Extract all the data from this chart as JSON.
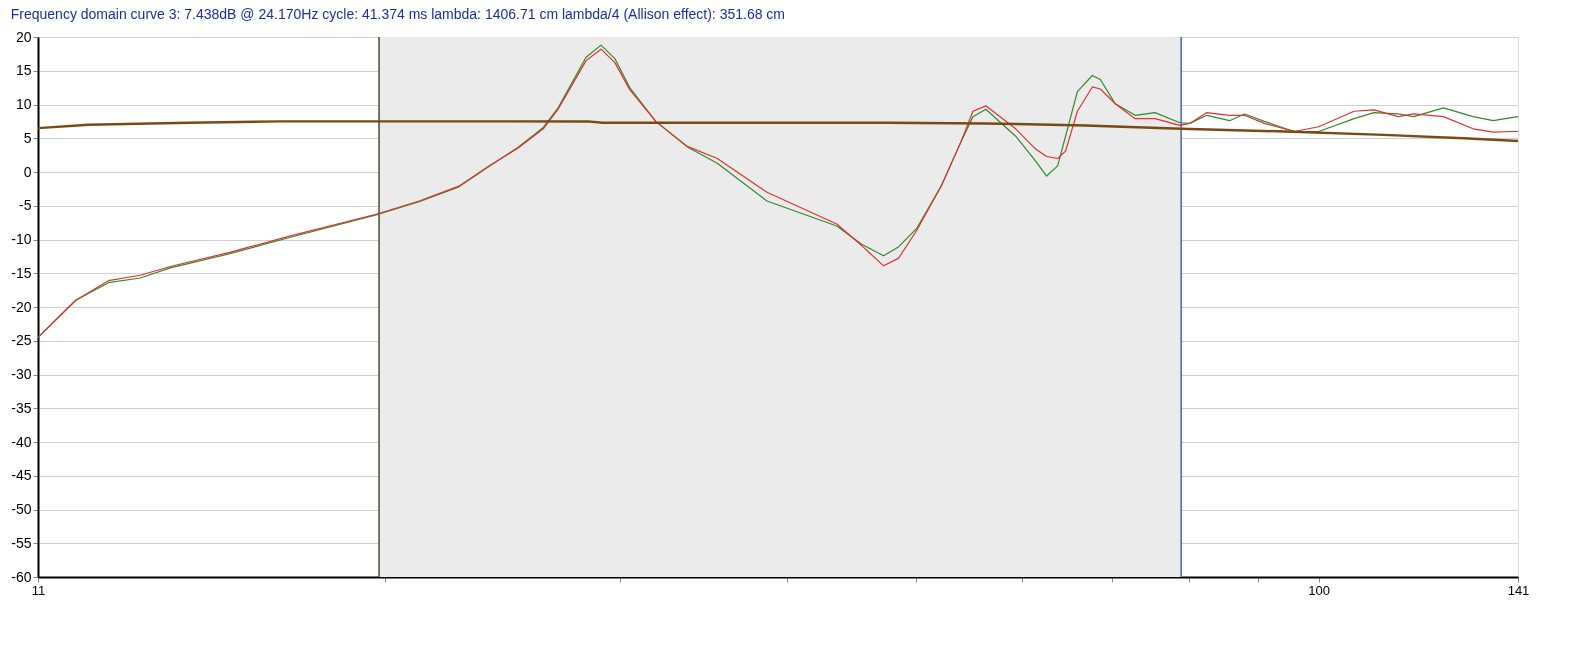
{
  "chart_data": {
    "type": "line",
    "title": "Frequency domain curve 3:  7.438dB @ 24.170Hz    cycle: 41.374 ms   lambda: 1406.71 cm  lambda/4 (Allison effect): 351.68 cm",
    "log": "x",
    "grid": "y",
    "marker": "none",
    "line_style": "solid",
    "xlim": [
      11,
      141
    ],
    "xticks": [
      11,
      {
        "value": 20,
        "label": null
      },
      {
        "value": 30,
        "label": null
      },
      {
        "value": 40,
        "label": null
      },
      {
        "value": 50,
        "label": null
      },
      {
        "value": 60,
        "label": null
      },
      {
        "value": 70,
        "label": null
      },
      {
        "value": 80,
        "label": null
      },
      {
        "value": 90,
        "label": null
      },
      100,
      141
    ],
    "ylim": [
      -60,
      20
    ],
    "yticks": [
      -60,
      -55,
      -50,
      -45,
      -40,
      -35,
      -30,
      -25,
      -20,
      -15,
      -10,
      -5,
      0,
      5,
      10,
      15,
      20
    ],
    "bands": [
      {
        "axis": "x",
        "from": 19.8,
        "to": 78.9,
        "color": "#ebebeb"
      }
    ],
    "ref_lines": [
      {
        "axis": "x",
        "value": 19.8,
        "color": "#4a4a30"
      },
      {
        "axis": "x",
        "value": 78.9,
        "color": "#4a64b0"
      }
    ],
    "series": [
      {
        "color": "#2e8b2e",
        "x": [
          11,
          11.74,
          12.42,
          13.12,
          13.82,
          15.31,
          16.97,
          19.67,
          21.22,
          22.72,
          23.93,
          25.18,
          26.28,
          26.96,
          28.29,
          29.03,
          29.73,
          30.5,
          31.9,
          33.69,
          35.47,
          38.64,
          43.58,
          45.49,
          47.24,
          48.47,
          50.0,
          52.17,
          53.99,
          55.11,
          56.35,
          59.32,
          61.4,
          62.57,
          63.77,
          64.65,
          65.98,
          67.7,
          68.64,
          70.43,
          72.89,
          75.43,
          78.73,
          80.08,
          82.46,
          85.77,
          88.0,
          91.07,
          95.88,
          100,
          106.3,
          110.0,
          114.7,
          117.8,
          124.0,
          130.5,
          135.1,
          139.8,
          141
        ],
        "values": [
          -24.5,
          -19.0,
          -16.4,
          -15.7,
          -14.2,
          -12.1,
          -9.7,
          -6.4,
          -4.4,
          -2.2,
          0.8,
          3.7,
          6.6,
          9.5,
          17.0,
          18.8,
          16.8,
          12.5,
          7.5,
          3.7,
          1.3,
          -4.3,
          -8.0,
          -10.7,
          -12.4,
          -11.1,
          -8.4,
          -2.1,
          4.5,
          8.2,
          9.3,
          5.3,
          1.6,
          -0.6,
          0.9,
          5.3,
          11.9,
          14.3,
          13.7,
          10.1,
          8.4,
          8.8,
          7.3,
          7.2,
          8.4,
          7.6,
          8.6,
          7.5,
          6.0,
          6.0,
          7.9,
          8.8,
          8.6,
          8.2,
          9.5,
          8.2,
          7.6,
          8.1,
          8.2
        ]
      },
      {
        "color": "#e03030",
        "x": [
          11,
          11.74,
          12.42,
          13.12,
          13.82,
          15.31,
          16.97,
          19.67,
          21.22,
          22.72,
          23.93,
          25.18,
          26.28,
          26.96,
          28.29,
          29.03,
          29.73,
          30.5,
          31.9,
          33.69,
          35.47,
          38.64,
          43.58,
          45.49,
          47.24,
          48.47,
          50.0,
          52.17,
          53.99,
          55.11,
          56.35,
          59.32,
          61.4,
          62.57,
          63.77,
          64.65,
          65.98,
          67.7,
          68.64,
          70.43,
          72.89,
          75.43,
          78.73,
          80.08,
          82.46,
          85.77,
          88.0,
          91.07,
          95.88,
          100,
          106.3,
          110.0,
          114.7,
          117.8,
          124.0,
          130.5,
          135.1,
          139.8,
          141
        ],
        "values": [
          -24.5,
          -19.0,
          -16.1,
          -15.3,
          -14.0,
          -11.9,
          -9.5,
          -6.3,
          -4.3,
          -2.1,
          0.9,
          3.6,
          6.4,
          9.3,
          16.5,
          18.2,
          16.2,
          12.2,
          7.5,
          3.8,
          2.0,
          -3.0,
          -7.7,
          -10.9,
          -13.9,
          -12.8,
          -8.7,
          -2.1,
          4.5,
          9.0,
          9.8,
          6.4,
          3.4,
          2.3,
          2.0,
          3.1,
          9.0,
          12.6,
          12.3,
          10.1,
          7.9,
          7.9,
          6.9,
          7.2,
          8.8,
          8.4,
          8.4,
          7.2,
          6.0,
          6.7,
          9.0,
          9.2,
          8.2,
          8.6,
          8.2,
          6.4,
          5.9,
          6.0,
          6.0
        ]
      },
      {
        "color": "#7a4a14",
        "x": [
          11,
          12.0,
          14.26,
          16.68,
          28.38,
          29.1,
          47.5,
          56.35,
          66.9,
          78.9,
          94.3,
          111.9,
          128.4,
          141
        ],
        "values": [
          6.5,
          7.0,
          7.3,
          7.5,
          7.5,
          7.3,
          7.3,
          7.2,
          6.9,
          6.4,
          6.0,
          5.5,
          5.0,
          4.6
        ]
      }
    ]
  }
}
